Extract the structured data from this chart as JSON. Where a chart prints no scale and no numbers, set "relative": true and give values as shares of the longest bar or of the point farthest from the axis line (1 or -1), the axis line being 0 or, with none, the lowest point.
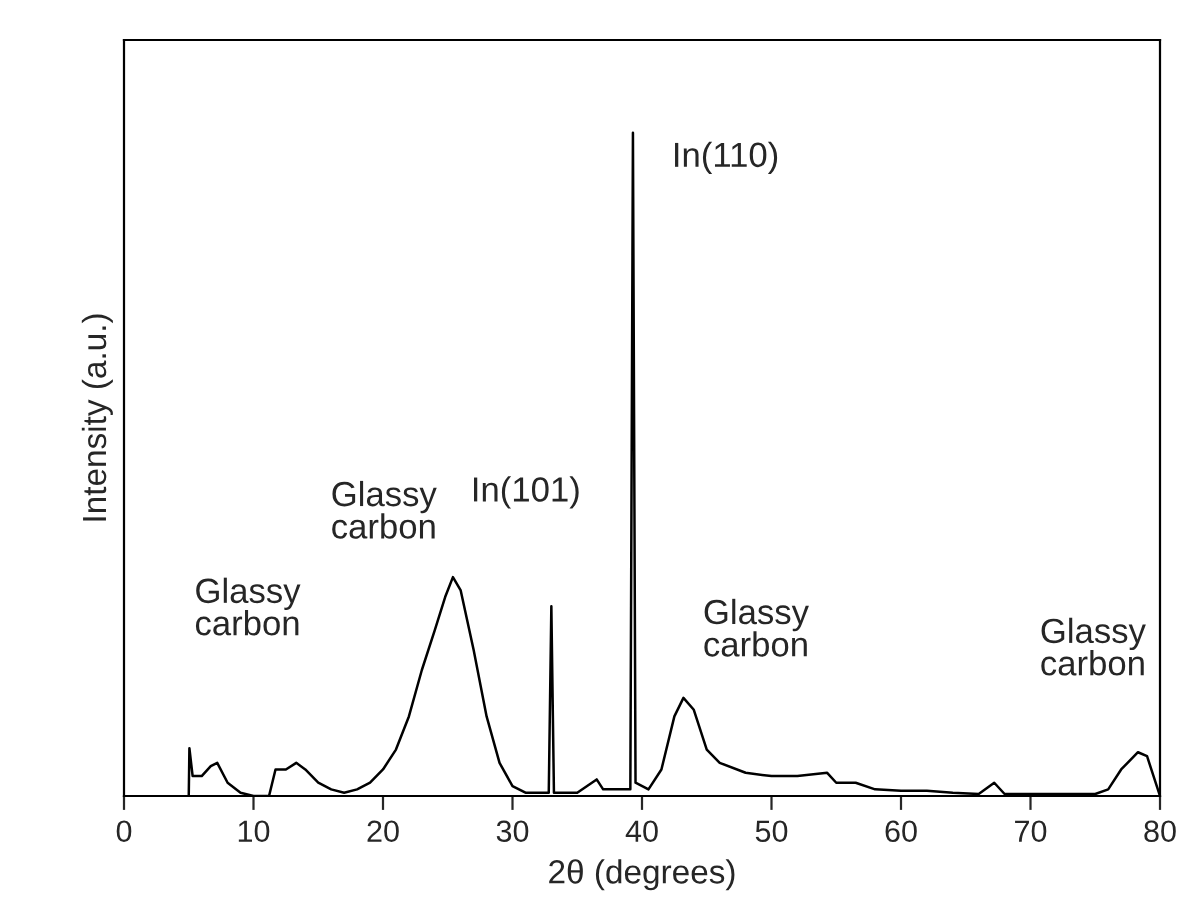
{
  "chart_data": {
    "type": "line",
    "relative": true,
    "xlabel": "2θ (degrees)",
    "ylabel": "Intensity (a.u.)",
    "xlim": [
      0,
      80
    ],
    "xticks": [
      0,
      10,
      20,
      30,
      40,
      50,
      60,
      70,
      80
    ],
    "grid": false,
    "legend": false,
    "series": [
      {
        "color": "#000000",
        "x": [
          5.0,
          5.05,
          5.3,
          6.0,
          6.7,
          7.2,
          8.0,
          9.0,
          10.0,
          11.2,
          11.7,
          12.5,
          13.3,
          14.0,
          15.0,
          16.0,
          17.0,
          18.0,
          19.0,
          20.0,
          21.0,
          22.0,
          23.0,
          24.0,
          24.8,
          25.4,
          26.0,
          27.0,
          28.0,
          29.0,
          30.0,
          31.0,
          32.8,
          33.0,
          33.2,
          35.0,
          36.5,
          37.0,
          39.1,
          39.3,
          39.5,
          40.5,
          41.5,
          42.5,
          43.2,
          44.0,
          45.0,
          46.0,
          48.0,
          50.0,
          52.0,
          54.3,
          55.0,
          56.5,
          58.0,
          60.0,
          62.0,
          64.0,
          66.0,
          67.2,
          68.0,
          70.0,
          72.0,
          75.0,
          76.0,
          77.0,
          78.3,
          79.0,
          80.0
        ],
        "values": [
          0.0,
          0.072,
          0.03,
          0.03,
          0.045,
          0.05,
          0.02,
          0.005,
          0.0,
          0.0,
          0.04,
          0.04,
          0.05,
          0.04,
          0.02,
          0.01,
          0.005,
          0.01,
          0.02,
          0.04,
          0.07,
          0.12,
          0.19,
          0.25,
          0.3,
          0.33,
          0.31,
          0.22,
          0.12,
          0.05,
          0.015,
          0.005,
          0.005,
          0.286,
          0.005,
          0.005,
          0.025,
          0.01,
          0.01,
          1.0,
          0.02,
          0.01,
          0.04,
          0.12,
          0.148,
          0.13,
          0.07,
          0.05,
          0.035,
          0.03,
          0.03,
          0.035,
          0.02,
          0.02,
          0.01,
          0.008,
          0.008,
          0.005,
          0.003,
          0.02,
          0.003,
          0.003,
          0.003,
          0.003,
          0.01,
          0.04,
          0.066,
          0.06,
          0.0
        ]
      }
    ],
    "annotations": [
      "Glassy\ncarbon",
      {
        "text": "Glassy\ncarbon",
        "x": 25.4,
        "y": 0.33
      },
      {
        "text": "In(101)",
        "x": 33.0,
        "y": 0.286
      },
      {
        "text": "In(110)",
        "x": 39.3,
        "y": 1.0
      },
      {
        "text": "Glassy\ncarbon",
        "x": 43.2,
        "y": 0.148
      },
      "Glassy\ncarbon"
    ]
  }
}
